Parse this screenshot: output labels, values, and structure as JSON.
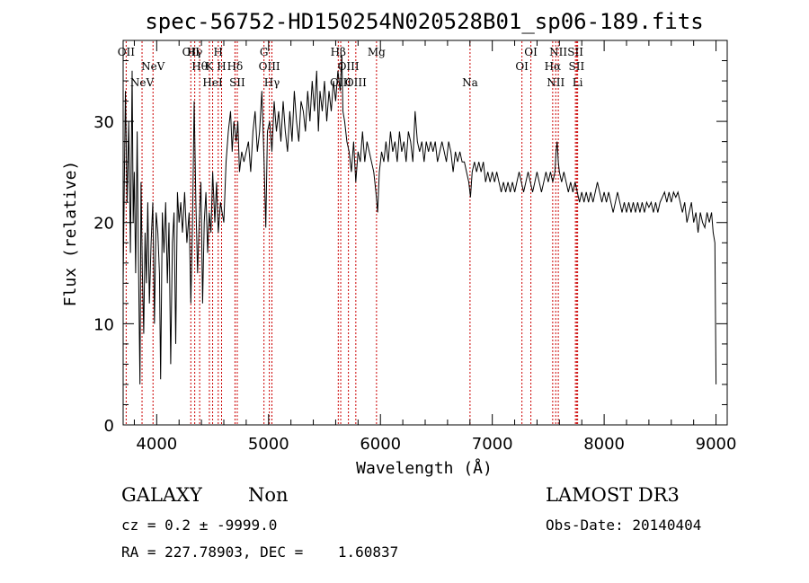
{
  "chart_data": {
    "type": "line",
    "title": "spec-56752-HD150254N020528B01_sp06-189.fits",
    "xlabel": "Wavelength (Å)",
    "ylabel": "Flux (relative)",
    "xlim": [
      3700,
      9100
    ],
    "ylim": [
      0,
      38
    ],
    "x_ticks": [
      "4000",
      "5000",
      "6000",
      "7000",
      "8000",
      "9000"
    ],
    "y_ticks": [
      "0",
      "10",
      "20",
      "30"
    ],
    "series": [
      {
        "values": [
          [
            3700,
            14
          ],
          [
            3720,
            33
          ],
          [
            3735,
            22
          ],
          [
            3750,
            30
          ],
          [
            3765,
            17
          ],
          [
            3780,
            35
          ],
          [
            3790,
            20
          ],
          [
            3800,
            25
          ],
          [
            3812,
            15
          ],
          [
            3825,
            29
          ],
          [
            3835,
            18
          ],
          [
            3850,
            4
          ],
          [
            3860,
            24
          ],
          [
            3872,
            15
          ],
          [
            3884,
            9
          ],
          [
            3896,
            19
          ],
          [
            3908,
            14
          ],
          [
            3920,
            22
          ],
          [
            3935,
            12
          ],
          [
            3950,
            18
          ],
          [
            3965,
            22
          ],
          [
            3980,
            10
          ],
          [
            3995,
            21
          ],
          [
            4010,
            19
          ],
          [
            4025,
            15
          ],
          [
            4035,
            4.5
          ],
          [
            4050,
            21
          ],
          [
            4065,
            17
          ],
          [
            4080,
            22
          ],
          [
            4095,
            14
          ],
          [
            4110,
            20
          ],
          [
            4125,
            6
          ],
          [
            4140,
            18
          ],
          [
            4155,
            21
          ],
          [
            4170,
            8
          ],
          [
            4185,
            23
          ],
          [
            4200,
            20
          ],
          [
            4215,
            22
          ],
          [
            4230,
            19
          ],
          [
            4250,
            23
          ],
          [
            4270,
            18
          ],
          [
            4290,
            21
          ],
          [
            4305,
            12
          ],
          [
            4320,
            20
          ],
          [
            4335,
            32
          ],
          [
            4350,
            22
          ],
          [
            4365,
            15
          ],
          [
            4380,
            20
          ],
          [
            4395,
            24
          ],
          [
            4410,
            12
          ],
          [
            4425,
            20
          ],
          [
            4440,
            23
          ],
          [
            4455,
            17
          ],
          [
            4470,
            21
          ],
          [
            4485,
            19
          ],
          [
            4500,
            25
          ],
          [
            4520,
            20
          ],
          [
            4535,
            24
          ],
          [
            4550,
            19
          ],
          [
            4570,
            22
          ],
          [
            4585,
            21
          ],
          [
            4600,
            20
          ],
          [
            4620,
            26
          ],
          [
            4640,
            29
          ],
          [
            4660,
            31
          ],
          [
            4675,
            27
          ],
          [
            4690,
            30
          ],
          [
            4710,
            28
          ],
          [
            4725,
            30
          ],
          [
            4740,
            25
          ],
          [
            4760,
            27
          ],
          [
            4780,
            26
          ],
          [
            4800,
            27
          ],
          [
            4820,
            28
          ],
          [
            4840,
            25
          ],
          [
            4860,
            29
          ],
          [
            4880,
            31
          ],
          [
            4900,
            27
          ],
          [
            4920,
            29
          ],
          [
            4940,
            33
          ],
          [
            4960,
            26
          ],
          [
            4975,
            19.5
          ],
          [
            4990,
            29
          ],
          [
            5010,
            30
          ],
          [
            5030,
            27
          ],
          [
            5050,
            32
          ],
          [
            5070,
            29
          ],
          [
            5090,
            31
          ],
          [
            5110,
            28
          ],
          [
            5130,
            32
          ],
          [
            5150,
            29
          ],
          [
            5170,
            27
          ],
          [
            5190,
            31
          ],
          [
            5210,
            28
          ],
          [
            5230,
            33
          ],
          [
            5250,
            30
          ],
          [
            5270,
            28
          ],
          [
            5290,
            32
          ],
          [
            5310,
            31
          ],
          [
            5330,
            29
          ],
          [
            5350,
            33
          ],
          [
            5370,
            30
          ],
          [
            5390,
            34
          ],
          [
            5410,
            31
          ],
          [
            5430,
            35
          ],
          [
            5445,
            29
          ],
          [
            5460,
            33
          ],
          [
            5480,
            31
          ],
          [
            5500,
            34
          ],
          [
            5520,
            30
          ],
          [
            5540,
            33
          ],
          [
            5560,
            31
          ],
          [
            5580,
            34
          ],
          [
            5600,
            32
          ],
          [
            5620,
            35
          ],
          [
            5640,
            33
          ],
          [
            5655,
            36.5
          ],
          [
            5665,
            31
          ],
          [
            5680,
            30
          ],
          [
            5700,
            28
          ],
          [
            5720,
            27
          ],
          [
            5740,
            25
          ],
          [
            5760,
            28
          ],
          [
            5780,
            24
          ],
          [
            5800,
            27
          ],
          [
            5820,
            26
          ],
          [
            5840,
            29
          ],
          [
            5860,
            26
          ],
          [
            5880,
            28
          ],
          [
            5900,
            27
          ],
          [
            5920,
            26
          ],
          [
            5940,
            25
          ],
          [
            5960,
            23
          ],
          [
            5975,
            21
          ],
          [
            5990,
            25
          ],
          [
            6010,
            27
          ],
          [
            6030,
            26
          ],
          [
            6050,
            28
          ],
          [
            6070,
            26
          ],
          [
            6090,
            29
          ],
          [
            6110,
            27
          ],
          [
            6130,
            28
          ],
          [
            6150,
            26
          ],
          [
            6170,
            29
          ],
          [
            6190,
            27
          ],
          [
            6210,
            28
          ],
          [
            6230,
            26
          ],
          [
            6250,
            29
          ],
          [
            6270,
            28
          ],
          [
            6290,
            26
          ],
          [
            6310,
            31
          ],
          [
            6330,
            28
          ],
          [
            6350,
            27
          ],
          [
            6370,
            28
          ],
          [
            6390,
            26
          ],
          [
            6410,
            28
          ],
          [
            6430,
            27
          ],
          [
            6450,
            28
          ],
          [
            6470,
            27
          ],
          [
            6490,
            28
          ],
          [
            6510,
            26
          ],
          [
            6530,
            27
          ],
          [
            6550,
            28
          ],
          [
            6570,
            27
          ],
          [
            6590,
            26
          ],
          [
            6610,
            28
          ],
          [
            6630,
            27
          ],
          [
            6650,
            25
          ],
          [
            6670,
            27
          ],
          [
            6690,
            26
          ],
          [
            6710,
            27
          ],
          [
            6730,
            26
          ],
          [
            6750,
            26
          ],
          [
            6770,
            25
          ],
          [
            6790,
            24
          ],
          [
            6805,
            22.5
          ],
          [
            6820,
            25
          ],
          [
            6840,
            26
          ],
          [
            6860,
            25
          ],
          [
            6880,
            26
          ],
          [
            6900,
            25
          ],
          [
            6920,
            26
          ],
          [
            6940,
            24
          ],
          [
            6960,
            25
          ],
          [
            6980,
            24
          ],
          [
            7000,
            25
          ],
          [
            7020,
            24
          ],
          [
            7040,
            25
          ],
          [
            7060,
            24
          ],
          [
            7080,
            23
          ],
          [
            7100,
            24
          ],
          [
            7120,
            23
          ],
          [
            7140,
            24
          ],
          [
            7160,
            23
          ],
          [
            7180,
            24
          ],
          [
            7200,
            23
          ],
          [
            7220,
            24
          ],
          [
            7240,
            25
          ],
          [
            7260,
            24
          ],
          [
            7280,
            23
          ],
          [
            7300,
            24
          ],
          [
            7320,
            25
          ],
          [
            7340,
            24
          ],
          [
            7360,
            23
          ],
          [
            7380,
            24
          ],
          [
            7400,
            25
          ],
          [
            7420,
            24
          ],
          [
            7440,
            23
          ],
          [
            7460,
            24
          ],
          [
            7480,
            25
          ],
          [
            7500,
            24
          ],
          [
            7520,
            25
          ],
          [
            7540,
            24
          ],
          [
            7560,
            25
          ],
          [
            7570,
            27
          ],
          [
            7580,
            28
          ],
          [
            7590,
            26
          ],
          [
            7600,
            25
          ],
          [
            7620,
            24
          ],
          [
            7640,
            25
          ],
          [
            7660,
            24
          ],
          [
            7680,
            23
          ],
          [
            7700,
            24
          ],
          [
            7720,
            23
          ],
          [
            7740,
            24
          ],
          [
            7760,
            23
          ],
          [
            7780,
            22
          ],
          [
            7800,
            23
          ],
          [
            7820,
            22
          ],
          [
            7840,
            23
          ],
          [
            7860,
            22
          ],
          [
            7880,
            23
          ],
          [
            7900,
            22
          ],
          [
            7920,
            23
          ],
          [
            7940,
            24
          ],
          [
            7960,
            23
          ],
          [
            7980,
            22
          ],
          [
            8000,
            23
          ],
          [
            8020,
            22
          ],
          [
            8040,
            23
          ],
          [
            8060,
            22
          ],
          [
            8080,
            21
          ],
          [
            8100,
            22
          ],
          [
            8120,
            23
          ],
          [
            8140,
            22
          ],
          [
            8160,
            21
          ],
          [
            8180,
            22
          ],
          [
            8200,
            21
          ],
          [
            8220,
            22
          ],
          [
            8240,
            21
          ],
          [
            8260,
            22
          ],
          [
            8280,
            21
          ],
          [
            8300,
            22
          ],
          [
            8320,
            21
          ],
          [
            8340,
            22
          ],
          [
            8360,
            21
          ],
          [
            8380,
            22
          ],
          [
            8400,
            21.5
          ],
          [
            8420,
            22
          ],
          [
            8440,
            21
          ],
          [
            8460,
            22
          ],
          [
            8480,
            21
          ],
          [
            8500,
            22
          ],
          [
            8520,
            22.5
          ],
          [
            8540,
            23
          ],
          [
            8560,
            22
          ],
          [
            8580,
            23
          ],
          [
            8600,
            22
          ],
          [
            8620,
            23
          ],
          [
            8640,
            22.5
          ],
          [
            8660,
            23
          ],
          [
            8680,
            22
          ],
          [
            8700,
            21
          ],
          [
            8720,
            22
          ],
          [
            8740,
            20
          ],
          [
            8760,
            21
          ],
          [
            8780,
            22
          ],
          [
            8800,
            20
          ],
          [
            8820,
            21
          ],
          [
            8840,
            19
          ],
          [
            8860,
            21
          ],
          [
            8880,
            20
          ],
          [
            8900,
            19.5
          ],
          [
            8920,
            21
          ],
          [
            8940,
            20
          ],
          [
            8960,
            21
          ],
          [
            8975,
            19
          ],
          [
            8990,
            18
          ],
          [
            9000,
            4
          ]
        ]
      }
    ],
    "lines": [
      {
        "x": 3727,
        "label": "OII",
        "row": 1
      },
      {
        "x": 3869,
        "label": "NeV",
        "row": 3
      },
      {
        "x": 3967,
        "label": "NeV",
        "row": 2
      },
      {
        "x": 4305,
        "label": "OII",
        "row": 1
      },
      {
        "x": 4340,
        "label": "Hγ",
        "row": 1
      },
      {
        "x": 4384,
        "label": "Hθ",
        "row": 2
      },
      {
        "x": 4471,
        "label": "K",
        "row": 2
      },
      {
        "x": 4500,
        "label": "HeI",
        "row": 3
      },
      {
        "x": 4550,
        "label": "H",
        "row": 1
      },
      {
        "x": 4580,
        "label": "H",
        "row": 2
      },
      {
        "x": 4700,
        "label": "Hδ",
        "row": 2
      },
      {
        "x": 4720,
        "label": "SII",
        "row": 3
      },
      {
        "x": 4959,
        "label": "G",
        "row": 1
      },
      {
        "x": 5007,
        "label": "OIII",
        "row": 2
      },
      {
        "x": 5030,
        "label": "Hγ",
        "row": 3
      },
      {
        "x": 5623,
        "label": "Hβ",
        "row": 1
      },
      {
        "x": 5645,
        "label": "OIII",
        "row": 3
      },
      {
        "x": 5714,
        "label": "OIII",
        "row": 2
      },
      {
        "x": 5780,
        "label": "OIII",
        "row": 3
      },
      {
        "x": 5965,
        "label": "Mg",
        "row": 1
      },
      {
        "x": 6801,
        "label": "Na",
        "row": 3
      },
      {
        "x": 7265,
        "label": "OI",
        "row": 2
      },
      {
        "x": 7345,
        "label": "OI",
        "row": 1
      },
      {
        "x": 7540,
        "label": "Hα",
        "row": 2
      },
      {
        "x": 7567,
        "label": "NII",
        "row": 3
      },
      {
        "x": 7590,
        "label": "NII",
        "row": 1
      },
      {
        "x": 7743,
        "label": "SII",
        "row": 1
      },
      {
        "x": 7753,
        "label": "SII",
        "row": 2
      },
      {
        "x": 7763,
        "label": "Li",
        "row": 3
      }
    ],
    "grid": false,
    "line_color": "#000000",
    "marker_color": "#cc0000"
  },
  "info": {
    "class": "GALAXY",
    "subclass": "Non",
    "survey": "LAMOST DR3",
    "cz": "cz = 0.2 ± -9999.0",
    "obs_date": "Obs-Date: 20140404",
    "radec": "RA = 227.78903, DEC =    1.60837"
  }
}
